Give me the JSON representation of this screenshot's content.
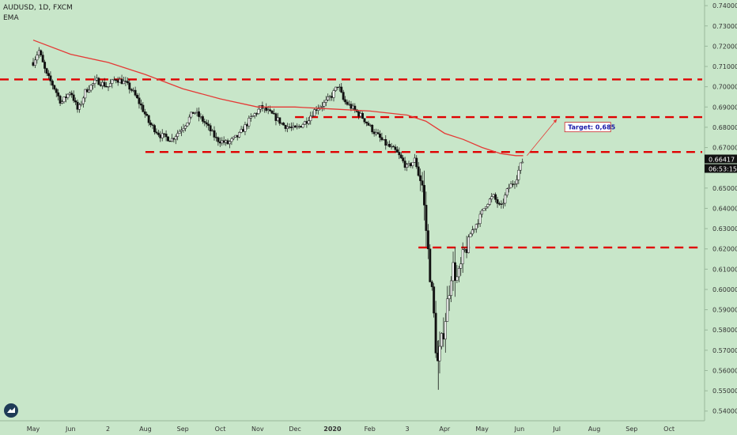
{
  "header": {
    "symbol_line": "AUDUSD, 1D, FXCM",
    "indicator": "EMA"
  },
  "colors": {
    "background": "#c8e6c9",
    "candle": "#111111",
    "ema": "#e53935",
    "level_line": "#e00000",
    "axis_text": "#333333"
  },
  "icons": {
    "logo": "tradingview-logo-icon"
  },
  "price_labels": {
    "last_price": "0.66417",
    "countdown": "06:53:15"
  },
  "annotation": {
    "target_label": "Target: 0,685",
    "target_value": 0.685
  },
  "chart_data": {
    "type": "candlestick",
    "instrument": "AUDUSD",
    "timeframe": "1D",
    "source": "FXCM",
    "indicators": [
      "EMA"
    ],
    "y_axis_ticks": [
      "0.74000",
      "0.73000",
      "0.72000",
      "0.71000",
      "0.70000",
      "0.69000",
      "0.68000",
      "0.67000",
      "0.66000",
      "0.65000",
      "0.64000",
      "0.63000",
      "0.62000",
      "0.61000",
      "0.60000",
      "0.59000",
      "0.58000",
      "0.57000",
      "0.56000",
      "0.55000",
      "0.54000"
    ],
    "ylim": [
      0.536,
      0.742
    ],
    "x_axis_labels": [
      {
        "label": "May",
        "t": 0
      },
      {
        "label": "Jun",
        "t": 1
      },
      {
        "label": "2",
        "t": 2
      },
      {
        "label": "Aug",
        "t": 3
      },
      {
        "label": "Sep",
        "t": 4
      },
      {
        "label": "Oct",
        "t": 5
      },
      {
        "label": "Nov",
        "t": 6
      },
      {
        "label": "Dec",
        "t": 7
      },
      {
        "label": "2020",
        "t": 8
      },
      {
        "label": "Feb",
        "t": 9
      },
      {
        "label": "3",
        "t": 10
      },
      {
        "label": "Apr",
        "t": 11
      },
      {
        "label": "May",
        "t": 12
      },
      {
        "label": "Jun",
        "t": 13
      },
      {
        "label": "Jul",
        "t": 14
      },
      {
        "label": "Aug",
        "t": 15
      },
      {
        "label": "Sep",
        "t": 16
      },
      {
        "label": "Oct",
        "t": 17
      }
    ],
    "close_path": [
      [
        0.0,
        0.712
      ],
      [
        0.15,
        0.718
      ],
      [
        0.35,
        0.706
      ],
      [
        0.55,
        0.7
      ],
      [
        0.75,
        0.692
      ],
      [
        1.0,
        0.698
      ],
      [
        1.2,
        0.688
      ],
      [
        1.4,
        0.698
      ],
      [
        1.7,
        0.703
      ],
      [
        2.0,
        0.7
      ],
      [
        2.2,
        0.704
      ],
      [
        2.45,
        0.702
      ],
      [
        2.65,
        0.698
      ],
      [
        2.9,
        0.69
      ],
      [
        3.1,
        0.682
      ],
      [
        3.4,
        0.676
      ],
      [
        3.7,
        0.674
      ],
      [
        4.0,
        0.68
      ],
      [
        4.3,
        0.688
      ],
      [
        4.6,
        0.682
      ],
      [
        4.9,
        0.674
      ],
      [
        5.2,
        0.672
      ],
      [
        5.5,
        0.676
      ],
      [
        5.8,
        0.684
      ],
      [
        6.1,
        0.69
      ],
      [
        6.4,
        0.686
      ],
      [
        6.7,
        0.681
      ],
      [
        7.0,
        0.679
      ],
      [
        7.3,
        0.683
      ],
      [
        7.55,
        0.689
      ],
      [
        7.8,
        0.692
      ],
      [
        8.0,
        0.696
      ],
      [
        8.15,
        0.701
      ],
      [
        8.3,
        0.693
      ],
      [
        8.5,
        0.69
      ],
      [
        8.8,
        0.685
      ],
      [
        9.1,
        0.678
      ],
      [
        9.4,
        0.672
      ],
      [
        9.7,
        0.668
      ],
      [
        10.0,
        0.66
      ],
      [
        10.2,
        0.664
      ],
      [
        10.4,
        0.652
      ],
      [
        10.55,
        0.62
      ],
      [
        10.7,
        0.59
      ],
      [
        10.8,
        0.562
      ],
      [
        10.92,
        0.574
      ],
      [
        11.05,
        0.59
      ],
      [
        11.2,
        0.612
      ],
      [
        11.35,
        0.604
      ],
      [
        11.5,
        0.616
      ],
      [
        11.7,
        0.628
      ],
      [
        11.9,
        0.634
      ],
      [
        12.1,
        0.642
      ],
      [
        12.3,
        0.646
      ],
      [
        12.5,
        0.64
      ],
      [
        12.7,
        0.65
      ],
      [
        12.9,
        0.654
      ],
      [
        13.0,
        0.66
      ],
      [
        13.1,
        0.664
      ]
    ],
    "ema_path": [
      [
        0.0,
        0.723
      ],
      [
        1.0,
        0.716
      ],
      [
        2.0,
        0.712
      ],
      [
        3.0,
        0.706
      ],
      [
        4.0,
        0.699
      ],
      [
        5.0,
        0.694
      ],
      [
        6.0,
        0.69
      ],
      [
        7.0,
        0.69
      ],
      [
        8.0,
        0.689
      ],
      [
        9.0,
        0.688
      ],
      [
        10.0,
        0.686
      ],
      [
        10.5,
        0.683
      ],
      [
        11.0,
        0.677
      ],
      [
        11.5,
        0.674
      ],
      [
        12.0,
        0.67
      ],
      [
        12.5,
        0.667
      ],
      [
        12.9,
        0.666
      ],
      [
        13.1,
        0.666
      ]
    ],
    "horizontal_levels": [
      {
        "price": 0.7036,
        "t_start": -0.9,
        "t_end": 17.9
      },
      {
        "price": 0.685,
        "t_start": 7.0,
        "t_end": 17.9
      },
      {
        "price": 0.6678,
        "t_start": 3.0,
        "t_end": 17.9
      },
      {
        "price": 0.6207,
        "t_start": 10.3,
        "t_end": 17.9
      }
    ],
    "target_arrow": {
      "from": [
        13.2,
        0.666
      ],
      "to": [
        14.0,
        0.684
      ]
    }
  }
}
